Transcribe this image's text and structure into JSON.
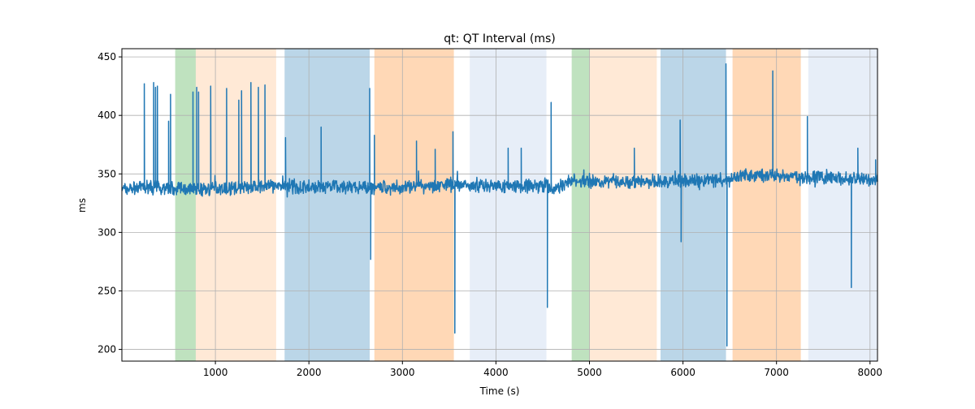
{
  "chart_data": {
    "type": "line",
    "title": "qt: QT Interval (ms)",
    "xlabel": "Time (s)",
    "ylabel": "ms",
    "xlim": [
      0,
      8080
    ],
    "ylim": [
      190,
      457
    ],
    "grid": true,
    "xticks": [
      1000,
      2000,
      3000,
      4000,
      5000,
      6000,
      7000,
      8000
    ],
    "yticks": [
      200,
      250,
      300,
      350,
      400,
      450
    ],
    "line_color": "#1f77b4",
    "shaded_regions": [
      {
        "start": 570,
        "end": 790,
        "color": "#2ca02c",
        "opacity": 0.3
      },
      {
        "start": 790,
        "end": 1650,
        "color": "#ff7f0e",
        "opacity": 0.17
      },
      {
        "start": 1740,
        "end": 2650,
        "color": "#1f77b4",
        "opacity": 0.3
      },
      {
        "start": 2700,
        "end": 3550,
        "color": "#ff7f0e",
        "opacity": 0.3
      },
      {
        "start": 3720,
        "end": 4540,
        "color": "#aec7e8",
        "opacity": 0.3
      },
      {
        "start": 4810,
        "end": 5000,
        "color": "#2ca02c",
        "opacity": 0.3
      },
      {
        "start": 5000,
        "end": 5720,
        "color": "#ff7f0e",
        "opacity": 0.17
      },
      {
        "start": 5760,
        "end": 6460,
        "color": "#1f77b4",
        "opacity": 0.3
      },
      {
        "start": 6530,
        "end": 7260,
        "color": "#ff7f0e",
        "opacity": 0.3
      },
      {
        "start": 7340,
        "end": 8080,
        "color": "#aec7e8",
        "opacity": 0.3
      }
    ],
    "series": [
      {
        "baseline": [
          [
            0,
            337
          ],
          [
            300,
            339
          ],
          [
            800,
            337
          ],
          [
            1200,
            338
          ],
          [
            1700,
            340
          ],
          [
            2000,
            338
          ],
          [
            2500,
            339
          ],
          [
            2900,
            338
          ],
          [
            3300,
            340
          ],
          [
            3600,
            341
          ],
          [
            4000,
            340
          ],
          [
            4540,
            340
          ],
          [
            4600,
            336
          ],
          [
            4800,
            344
          ],
          [
            5200,
            344
          ],
          [
            5700,
            343
          ],
          [
            6100,
            344
          ],
          [
            6500,
            345
          ],
          [
            6600,
            349
          ],
          [
            7000,
            348
          ],
          [
            7500,
            347
          ],
          [
            8080,
            345
          ]
        ],
        "spikes": [
          [
            240,
            427
          ],
          [
            340,
            428
          ],
          [
            360,
            424
          ],
          [
            380,
            425
          ],
          [
            520,
            418
          ],
          [
            500,
            395
          ],
          [
            760,
            420
          ],
          [
            800,
            424
          ],
          [
            820,
            420
          ],
          [
            950,
            425
          ],
          [
            1120,
            423
          ],
          [
            1250,
            413
          ],
          [
            1280,
            421
          ],
          [
            1380,
            428
          ],
          [
            1460,
            424
          ],
          [
            1530,
            426
          ],
          [
            1750,
            381
          ],
          [
            2130,
            390
          ],
          [
            2650,
            423
          ],
          [
            2660,
            277
          ],
          [
            2700,
            383
          ],
          [
            3150,
            378
          ],
          [
            3350,
            371
          ],
          [
            3540,
            386
          ],
          [
            3560,
            214
          ],
          [
            4130,
            372
          ],
          [
            4270,
            372
          ],
          [
            4550,
            236
          ],
          [
            4590,
            411
          ],
          [
            5480,
            372
          ],
          [
            5970,
            396
          ],
          [
            5980,
            292
          ],
          [
            6460,
            444
          ],
          [
            6470,
            203
          ],
          [
            6960,
            438
          ],
          [
            7330,
            399
          ],
          [
            7800,
            253
          ],
          [
            7870,
            372
          ],
          [
            8060,
            362
          ]
        ]
      }
    ]
  }
}
